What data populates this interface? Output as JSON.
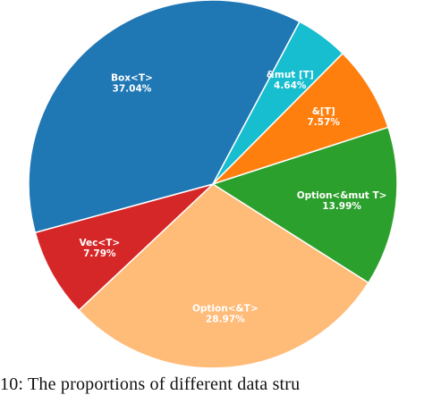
{
  "chart_data": {
    "type": "pie",
    "slices": [
      {
        "label": "Option<&T>",
        "value": 28.97,
        "pct_text": "28.97%",
        "color": "#ffbb78"
      },
      {
        "label": "Vec<T>",
        "value": 7.79,
        "pct_text": "7.79%",
        "color": "#d62728"
      },
      {
        "label": "Box<T>",
        "value": 37.04,
        "pct_text": "37.04%",
        "color": "#1f77b4"
      },
      {
        "label": "&mut [T]",
        "value": 4.64,
        "pct_text": "4.64%",
        "color": "#17becf"
      },
      {
        "label": "&[T]",
        "value": 7.57,
        "pct_text": "7.57%",
        "color": "#ff7f0e"
      },
      {
        "label": "Option<&mut T>",
        "value": 13.99,
        "pct_text": "13.99%",
        "color": "#2ca02c"
      }
    ]
  },
  "caption": "10: The proportions of different data stru"
}
